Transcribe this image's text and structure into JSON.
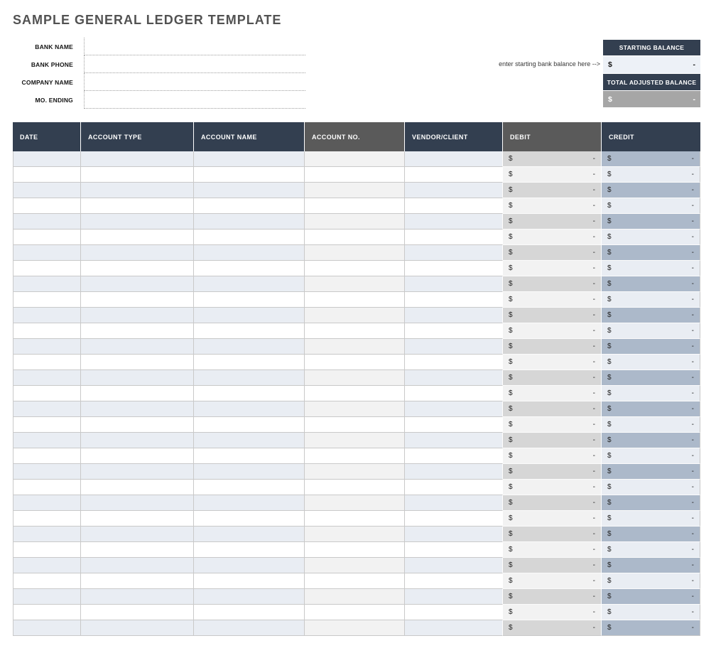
{
  "page": {
    "title": "SAMPLE GENERAL LEDGER TEMPLATE"
  },
  "form": {
    "fields": [
      {
        "label": "BANK NAME",
        "value": ""
      },
      {
        "label": "BANK PHONE",
        "value": ""
      },
      {
        "label": "COMPANY NAME",
        "value": ""
      },
      {
        "label": "MO. ENDING",
        "value": ""
      }
    ]
  },
  "balances": {
    "note": "enter starting bank balance here -->",
    "starting": {
      "label": "STARTING BALANCE",
      "currency": "$",
      "amount": "-"
    },
    "adjusted": {
      "label": "TOTAL ADJUSTED BALANCE",
      "currency": "$",
      "amount": "-"
    }
  },
  "ledger": {
    "columns": [
      {
        "label": "DATE",
        "theme": "navy",
        "type": "text"
      },
      {
        "label": "ACCOUNT TYPE",
        "theme": "navy",
        "type": "text"
      },
      {
        "label": "ACCOUNT NAME",
        "theme": "navy",
        "type": "text"
      },
      {
        "label": "ACCOUNT NO.",
        "theme": "gray",
        "type": "text"
      },
      {
        "label": "VENDOR/CLIENT",
        "theme": "navy",
        "type": "text"
      },
      {
        "label": "DEBIT",
        "theme": "debit",
        "type": "money"
      },
      {
        "label": "CREDIT",
        "theme": "credit",
        "type": "money"
      }
    ],
    "row_count": 31,
    "empty_cell": "",
    "money_cell": {
      "currency": "$",
      "amount": "-"
    }
  },
  "colors": {
    "navy_header": "#333F50",
    "gray_header": "#5A5A5A",
    "row_band_blue": "#E9EDF3",
    "row_band_gray": "#F2F2F2",
    "debit_band": "#D6D6D6",
    "debit_light": "#F2F2F2",
    "credit_band": "#ACB9CA",
    "credit_light": "#E9EDF3",
    "starting_value_bg": "#EDF1F7",
    "adjusted_value_bg": "#A6A6A6"
  }
}
